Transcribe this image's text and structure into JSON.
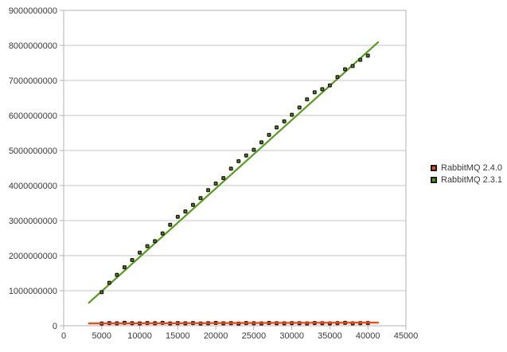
{
  "colors": {
    "background": "#ffffff",
    "grid": "#c6c6c6",
    "axis": "#b3b3b3",
    "text": "#3a3a3a",
    "marker_dark": "#241f1b",
    "series_red": "#ff420e",
    "series_green": "#579d1c"
  },
  "legend": {
    "items": [
      {
        "label": "RabbitMQ 2.4.0",
        "color": "#ff420e"
      },
      {
        "label": "RabbitMQ 2.3.1",
        "color": "#579d1c"
      }
    ]
  },
  "chart_data": {
    "type": "scatter",
    "title": "",
    "xlabel": "",
    "ylabel": "",
    "xlim": [
      0,
      45000
    ],
    "ylim": [
      0,
      9000000000
    ],
    "grid": "horizontal-only",
    "legend_position": "right",
    "x_ticks": [
      0,
      5000,
      10000,
      15000,
      20000,
      25000,
      30000,
      35000,
      40000,
      45000
    ],
    "x_tick_labels": [
      "0",
      "5000",
      "10000",
      "15000",
      "20000",
      "25000",
      "30000",
      "35000",
      "40000",
      "45000"
    ],
    "y_ticks": [
      0,
      1000000000,
      2000000000,
      3000000000,
      4000000000,
      5000000000,
      6000000000,
      7000000000,
      8000000000,
      9000000000
    ],
    "y_tick_labels": [
      "0",
      "1000000000",
      "2000000000",
      "3000000000",
      "4000000000",
      "5000000000",
      "6000000000",
      "7000000000",
      "8000000000",
      "9000000000"
    ],
    "series": [
      {
        "name": "RabbitMQ 2.4.0",
        "color": "#ff420e",
        "marker": "dark-square-with-color-center",
        "trend": {
          "x1": 3310,
          "y1": 65000000,
          "x2": 41340,
          "y2": 88000000
        },
        "x": [
          5000,
          6000,
          7000,
          8000,
          9000,
          10000,
          11000,
          12000,
          13000,
          14000,
          15000,
          16000,
          17000,
          18000,
          19000,
          20000,
          21000,
          22000,
          23000,
          24000,
          25000,
          26000,
          27000,
          28000,
          29000,
          30000,
          31000,
          32000,
          33000,
          34000,
          35000,
          36000,
          37000,
          38000,
          39000,
          40000
        ],
        "y": [
          62000000,
          75000000,
          68000000,
          81000000,
          72000000,
          65000000,
          78000000,
          70000000,
          83000000,
          66000000,
          74000000,
          69000000,
          77000000,
          63000000,
          71000000,
          80000000,
          67000000,
          73000000,
          61000000,
          76000000,
          70000000,
          65000000,
          79000000,
          72000000,
          68000000,
          75000000,
          70000000,
          64000000,
          78000000,
          71000000,
          66000000,
          74000000,
          81000000,
          69000000,
          73000000,
          77000000
        ]
      },
      {
        "name": "RabbitMQ 2.3.1",
        "color": "#579d1c",
        "marker": "dark-square-with-color-center",
        "trend": {
          "x1": 3310,
          "y1": 654000000,
          "x2": 41340,
          "y2": 8090000000
        },
        "x": [
          5000,
          6000,
          7000,
          8000,
          9000,
          10000,
          11000,
          12000,
          13000,
          14000,
          15000,
          16000,
          17000,
          18000,
          19000,
          20000,
          21000,
          22000,
          23000,
          24000,
          25000,
          26000,
          27000,
          28000,
          29000,
          30000,
          31000,
          32000,
          33000,
          34000,
          35000,
          36000,
          37000,
          38000,
          39000,
          40000
        ],
        "y": [
          958000000,
          1224000000,
          1452000000,
          1667000000,
          1874000000,
          2086000000,
          2271000000,
          2412000000,
          2634000000,
          2881000000,
          3108000000,
          3262000000,
          3449000000,
          3641000000,
          3868000000,
          4057000000,
          4213000000,
          4482000000,
          4695000000,
          4858000000,
          5021000000,
          5234000000,
          5447000000,
          5658000000,
          5832000000,
          6019000000,
          6228000000,
          6459000000,
          6662000000,
          6749000000,
          6858000000,
          7096000000,
          7318000000,
          7412000000,
          7589000000,
          7708000000
        ]
      }
    ]
  }
}
